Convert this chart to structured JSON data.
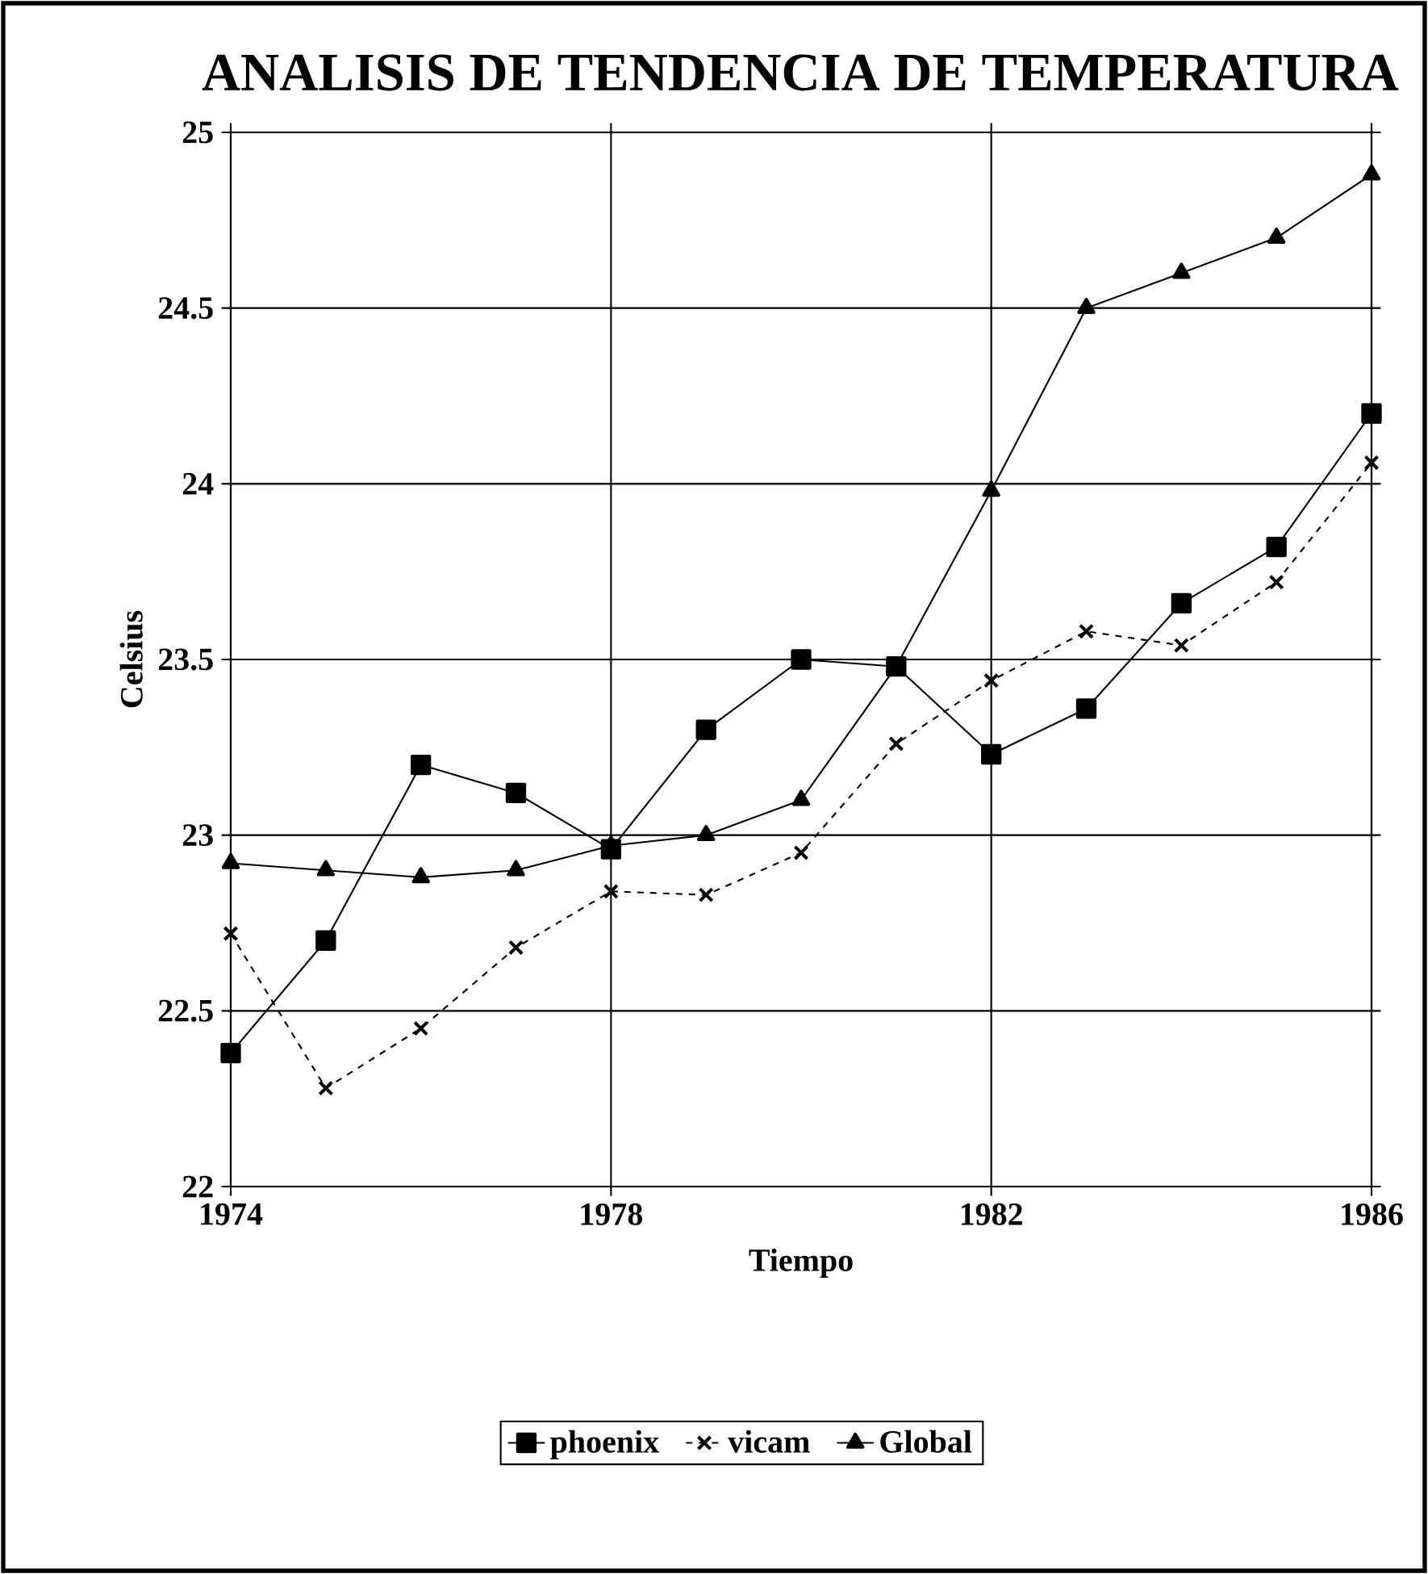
{
  "chart_data": {
    "type": "line",
    "title": "ANALISIS DE TENDENCIA DE TEMPERATURA",
    "xlabel": "Tiempo",
    "ylabel": "Celsius",
    "x": [
      1974,
      1975,
      1976,
      1977,
      1978,
      1979,
      1980,
      1981,
      1982,
      1983,
      1984,
      1985,
      1986
    ],
    "series": [
      {
        "name": "phoenix",
        "color": "#000000",
        "marker": "square",
        "line_style": "solid",
        "values": [
          22.38,
          22.7,
          23.2,
          23.12,
          22.96,
          23.3,
          23.5,
          23.48,
          23.23,
          23.36,
          23.66,
          23.82,
          24.2
        ]
      },
      {
        "name": "vicam",
        "color": "#000000",
        "marker": "cross",
        "line_style": "dashed",
        "values": [
          22.72,
          22.28,
          22.45,
          22.68,
          22.84,
          22.83,
          22.95,
          23.26,
          23.44,
          23.58,
          23.54,
          23.72,
          24.06
        ]
      },
      {
        "name": "Global",
        "color": "#000000",
        "marker": "triangle",
        "line_style": "solid",
        "values": [
          22.92,
          22.9,
          22.88,
          22.9,
          22.97,
          23.0,
          23.1,
          23.48,
          23.98,
          24.5,
          24.6,
          24.7,
          24.88
        ]
      }
    ],
    "xlim": [
      1974,
      1986
    ],
    "xticks": [
      1974,
      1978,
      1982,
      1986
    ],
    "ylim": [
      22,
      25
    ],
    "yticks": [
      22,
      22.5,
      23,
      23.5,
      24,
      24.5,
      25
    ],
    "grid": true,
    "legend": "bottom"
  }
}
